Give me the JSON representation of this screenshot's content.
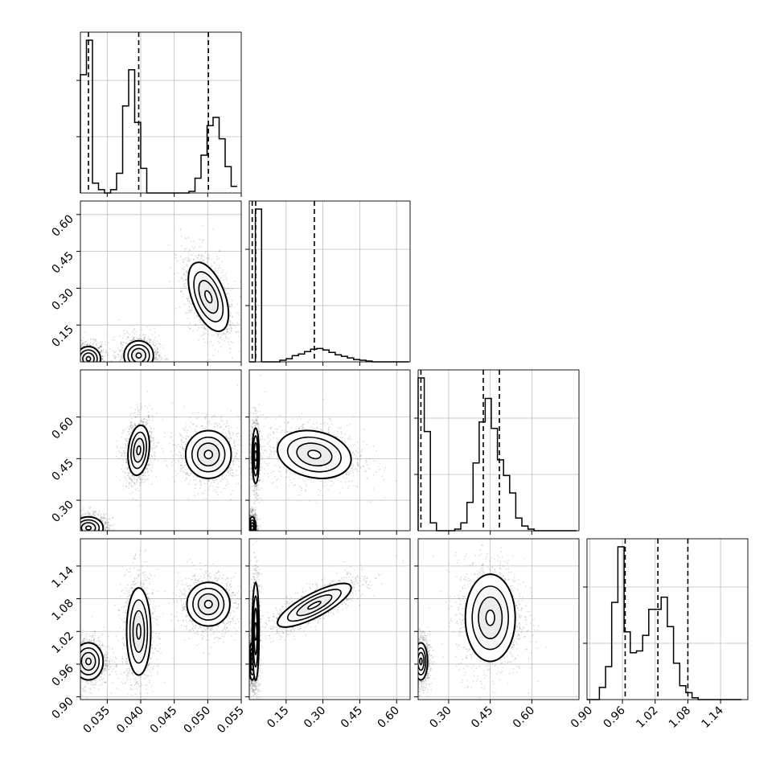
{
  "chart_data": {
    "type": "corner",
    "parameters": [
      {
        "range": [
          0.031,
          0.055
        ],
        "ticks": [
          "0.035",
          "0.040",
          "0.045",
          "0.050",
          "0.055"
        ],
        "tick_values": [
          0.035,
          0.04,
          0.045,
          0.05,
          0.055
        ]
      },
      {
        "range": [
          0.0,
          0.655
        ],
        "ticks": [
          "0.15",
          "0.30",
          "0.45",
          "0.60"
        ],
        "tick_values": [
          0.15,
          0.3,
          0.45,
          0.6
        ]
      },
      {
        "range": [
          0.19,
          0.77
        ],
        "ticks": [
          "0.30",
          "0.45",
          "0.60"
        ],
        "tick_values": [
          0.3,
          0.45,
          0.6
        ]
      },
      {
        "range": [
          0.895,
          1.19
        ],
        "ticks": [
          "0.90",
          "0.96",
          "1.02",
          "1.08",
          "1.14"
        ],
        "tick_values": [
          0.9,
          0.96,
          1.02,
          1.08,
          1.14
        ]
      }
    ],
    "diagonals": [
      {
        "param": 0,
        "bin_edges": [
          0.031,
          0.0319,
          0.0328,
          0.0337,
          0.0346,
          0.0355,
          0.0364,
          0.0373,
          0.0382,
          0.0391,
          0.04,
          0.0409,
          0.0418,
          0.0427,
          0.0436,
          0.0445,
          0.0454,
          0.0463,
          0.0472,
          0.0481,
          0.049,
          0.0499,
          0.0508,
          0.0517,
          0.0526,
          0.0535,
          0.0544
        ],
        "counts": [
          0.72,
          0.93,
          0.06,
          0.02,
          0.0,
          0.02,
          0.12,
          0.53,
          0.75,
          0.43,
          0.15,
          0.0,
          0.0,
          0.0,
          0.0,
          0.0,
          0.0,
          0.0,
          0.01,
          0.09,
          0.23,
          0.41,
          0.46,
          0.33,
          0.16,
          0.04
        ],
        "quantiles": [
          0.0322,
          0.0397,
          0.0501
        ]
      },
      {
        "param": 1,
        "bin_edges": [
          0.0,
          0.025,
          0.05,
          0.075,
          0.1,
          0.125,
          0.15,
          0.175,
          0.2,
          0.225,
          0.25,
          0.275,
          0.3,
          0.325,
          0.35,
          0.375,
          0.4,
          0.425,
          0.45,
          0.475,
          0.5,
          0.525,
          0.55,
          0.575,
          0.6,
          0.625,
          0.65
        ],
        "counts": [
          0.0,
          0.97,
          0.0,
          0.0,
          0.0,
          0.01,
          0.02,
          0.04,
          0.05,
          0.065,
          0.08,
          0.085,
          0.075,
          0.06,
          0.045,
          0.035,
          0.025,
          0.015,
          0.01,
          0.005,
          0.0,
          0.0,
          0.0,
          0.0,
          0.0,
          0.0
        ],
        "quantiles": [
          0.012,
          0.026,
          0.265
        ]
      },
      {
        "param": 2,
        "bin_edges": [
          0.19,
          0.212,
          0.234,
          0.256,
          0.278,
          0.3,
          0.322,
          0.344,
          0.366,
          0.388,
          0.41,
          0.432,
          0.454,
          0.476,
          0.498,
          0.52,
          0.542,
          0.564,
          0.586,
          0.608,
          0.63,
          0.652,
          0.674,
          0.696,
          0.718,
          0.74,
          0.762
        ],
        "counts": [
          0.97,
          0.63,
          0.05,
          0.0,
          0.0,
          0.0,
          0.01,
          0.05,
          0.18,
          0.43,
          0.69,
          0.84,
          0.65,
          0.45,
          0.35,
          0.24,
          0.08,
          0.03,
          0.01,
          0.0,
          0.0,
          0.0,
          0.0,
          0.0,
          0.0,
          0.0
        ],
        "quantiles": [
          0.2,
          0.425,
          0.483
        ]
      },
      {
        "param": 3,
        "bin_edges": [
          0.895,
          0.9063,
          0.9177,
          0.929,
          0.9403,
          0.9517,
          0.963,
          0.9743,
          0.9857,
          0.997,
          1.0083,
          1.0197,
          1.031,
          1.0423,
          1.0537,
          1.065,
          1.0763,
          1.0877,
          1.099,
          1.1103,
          1.1217,
          1.133,
          1.1443,
          1.1557,
          1.167,
          1.1783
        ],
        "counts": [
          0.0,
          0.0,
          0.07,
          0.19,
          0.56,
          0.88,
          0.39,
          0.27,
          0.28,
          0.37,
          0.52,
          0.52,
          0.59,
          0.42,
          0.21,
          0.08,
          0.04,
          0.01,
          0.0,
          0.0,
          0.0,
          0.0,
          0.0,
          0.0,
          0.0
        ],
        "quantiles": [
          0.965,
          1.025,
          1.08
        ]
      }
    ],
    "pairs": [
      {
        "x": 0,
        "y": 1,
        "modes": [
          {
            "cx": 0.0322,
            "cy": 0.012,
            "sx": 0.0009,
            "sy": 0.025,
            "rho": 0.0,
            "w": 1.0
          },
          {
            "cx": 0.0397,
            "cy": 0.026,
            "sx": 0.0011,
            "sy": 0.03,
            "rho": 0.0,
            "w": 1.0
          },
          {
            "cx": 0.0501,
            "cy": 0.265,
            "sx": 0.0015,
            "sy": 0.07,
            "rho": -0.5,
            "w": 1.0
          }
        ]
      },
      {
        "x": 0,
        "y": 2,
        "modes": [
          {
            "cx": 0.0322,
            "cy": 0.2,
            "sx": 0.0011,
            "sy": 0.02,
            "rho": 0.0,
            "w": 1.0
          },
          {
            "cx": 0.0397,
            "cy": 0.48,
            "sx": 0.0008,
            "sy": 0.045,
            "rho": 0.2,
            "w": 1.0
          },
          {
            "cx": 0.0501,
            "cy": 0.465,
            "sx": 0.0017,
            "sy": 0.043,
            "rho": 0.0,
            "w": 1.0
          }
        ]
      },
      {
        "x": 0,
        "y": 3,
        "modes": [
          {
            "cx": 0.0322,
            "cy": 0.965,
            "sx": 0.0011,
            "sy": 0.017,
            "rho": 0.0,
            "w": 1.0
          },
          {
            "cx": 0.0397,
            "cy": 1.02,
            "sx": 0.0009,
            "sy": 0.04,
            "rho": 0.0,
            "w": 1.0
          },
          {
            "cx": 0.0501,
            "cy": 1.07,
            "sx": 0.0016,
            "sy": 0.02,
            "rho": 0.0,
            "w": 1.0
          }
        ]
      },
      {
        "x": 1,
        "y": 2,
        "modes": [
          {
            "cx": 0.012,
            "cy": 0.2,
            "sx": 0.007,
            "sy": 0.02,
            "rho": 0.0,
            "w": 1.0
          },
          {
            "cx": 0.026,
            "cy": 0.46,
            "sx": 0.007,
            "sy": 0.05,
            "rho": 0.0,
            "w": 0.8
          },
          {
            "cx": 0.265,
            "cy": 0.465,
            "sx": 0.075,
            "sy": 0.043,
            "rho": -0.2,
            "w": 1.0
          }
        ]
      },
      {
        "x": 1,
        "y": 3,
        "modes": [
          {
            "cx": 0.012,
            "cy": 0.965,
            "sx": 0.007,
            "sy": 0.017,
            "rho": 0.0,
            "w": 1.0
          },
          {
            "cx": 0.026,
            "cy": 1.02,
            "sx": 0.007,
            "sy": 0.045,
            "rho": 0.0,
            "w": 0.8
          },
          {
            "cx": 0.265,
            "cy": 1.068,
            "sx": 0.075,
            "sy": 0.02,
            "rho": 0.8,
            "w": 1.0
          }
        ]
      },
      {
        "x": 2,
        "y": 3,
        "modes": [
          {
            "cx": 0.2,
            "cy": 0.965,
            "sx": 0.012,
            "sy": 0.017,
            "rho": 0.0,
            "w": 1.0
          },
          {
            "cx": 0.45,
            "cy": 1.045,
            "sx": 0.045,
            "sy": 0.04,
            "rho": 0.0,
            "w": 1.2
          }
        ]
      }
    ]
  }
}
